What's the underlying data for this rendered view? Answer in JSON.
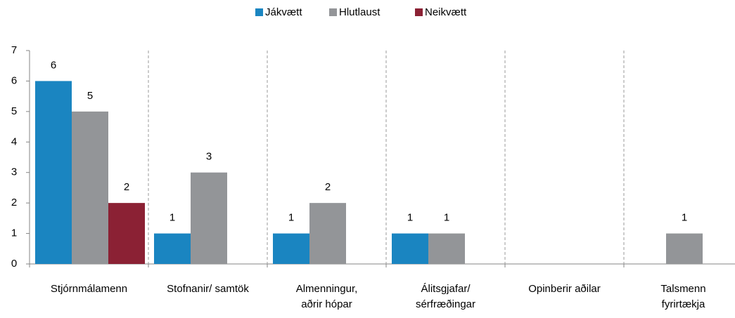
{
  "chart_data": {
    "type": "bar",
    "categories": [
      "Stjórnmálamenn",
      "Stofnanir/ samtök",
      "Almenningur,\naðrir hópar",
      "Álitsgjafar/\nsérfræðingar",
      "Opinberir aðilar",
      "Talsmenn\nfyrirtækja"
    ],
    "series": [
      {
        "name": "Jákvætt",
        "color": "#1a85c1",
        "values": [
          6,
          1,
          1,
          1,
          null,
          null
        ]
      },
      {
        "name": "Hlutlaust",
        "color": "#939598",
        "values": [
          5,
          3,
          2,
          1,
          null,
          1
        ]
      },
      {
        "name": "Neikvætt",
        "color": "#8b2134",
        "values": [
          2,
          null,
          null,
          null,
          null,
          null
        ]
      }
    ],
    "ylim": [
      0,
      7
    ],
    "yticks": [
      0,
      1,
      2,
      3,
      4,
      5,
      6,
      7
    ],
    "legend": "top"
  }
}
